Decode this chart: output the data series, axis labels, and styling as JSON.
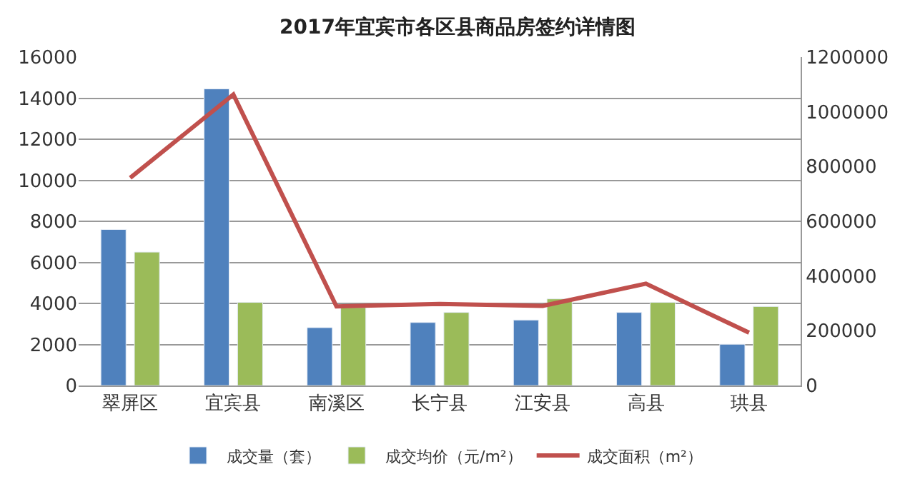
{
  "chart_data": {
    "type": "bar",
    "title": "2017年宜宾市各区县商品房签约详情图",
    "categories": [
      "翠屏区",
      "宜宾县",
      "南溪区",
      "长宁县",
      "江安县",
      "高县",
      "珙县"
    ],
    "series": [
      {
        "name": "成交量（套）",
        "color": "#4f81bd",
        "values": [
          7600,
          14450,
          2820,
          3070,
          3190,
          3560,
          2010
        ]
      },
      {
        "name": "成交均价（元/m²）",
        "color": "#9bbb59",
        "values": [
          6500,
          4050,
          3800,
          3560,
          4220,
          4050,
          3850
        ]
      },
      {
        "name": "成交面积（m²）",
        "type": "line",
        "axis": "y2",
        "color": "#c0504d",
        "values": [
          759000,
          1063000,
          289000,
          298000,
          291000,
          372000,
          193000
        ]
      }
    ],
    "ylim": [
      0,
      16000
    ],
    "yticks": [
      0,
      2000,
      4000,
      6000,
      8000,
      10000,
      12000,
      14000,
      16000
    ],
    "y2lim": [
      0,
      1200000
    ],
    "y2ticks": [
      0,
      200000,
      400000,
      600000,
      800000,
      1000000,
      1200000
    ],
    "grid": "y",
    "legend": "bottom",
    "marker": "none",
    "line_style": "solid"
  }
}
